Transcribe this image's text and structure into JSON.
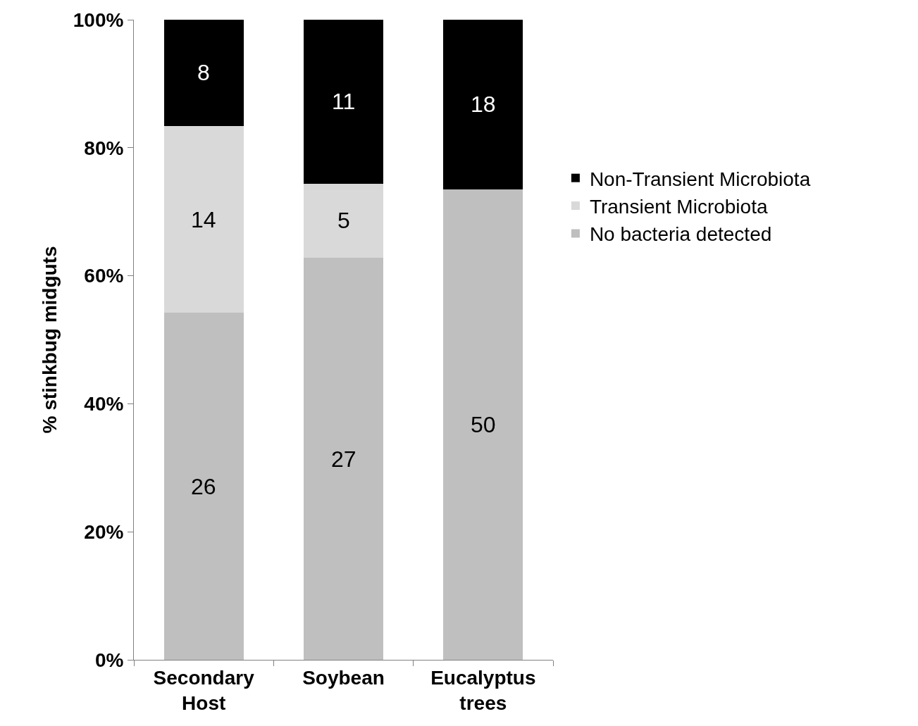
{
  "chart_data": {
    "type": "bar",
    "stacked": true,
    "ylabel": "% stinkbug midguts",
    "categories": [
      "Secondary\nHost",
      "Soybean",
      "Eucalyptus\ntrees"
    ],
    "series": [
      {
        "name": "No bacteria detected",
        "color": "#bfbfbf",
        "values": [
          54.2,
          62.8,
          73.5
        ]
      },
      {
        "name": "Transient Microbiota",
        "color": "#d9d9d9",
        "values": [
          29.2,
          11.6,
          0
        ]
      },
      {
        "name": "Non-Transient Microbiota",
        "color": "#000000",
        "values": [
          16.6,
          25.6,
          26.5
        ]
      }
    ],
    "annotations": [
      "26",
      "14",
      "8",
      "27",
      "5",
      "11",
      "50",
      "18"
    ],
    "ylim": [
      0,
      100
    ],
    "yticks": [
      {
        "value": 0,
        "label": "0%"
      },
      {
        "value": 20,
        "label": "20%"
      },
      {
        "value": 40,
        "label": "40%"
      },
      {
        "value": 60,
        "label": "60%"
      },
      {
        "value": 80,
        "label": "80%"
      },
      {
        "value": 100,
        "label": "100%"
      }
    ],
    "grid": false,
    "legend": "right"
  }
}
